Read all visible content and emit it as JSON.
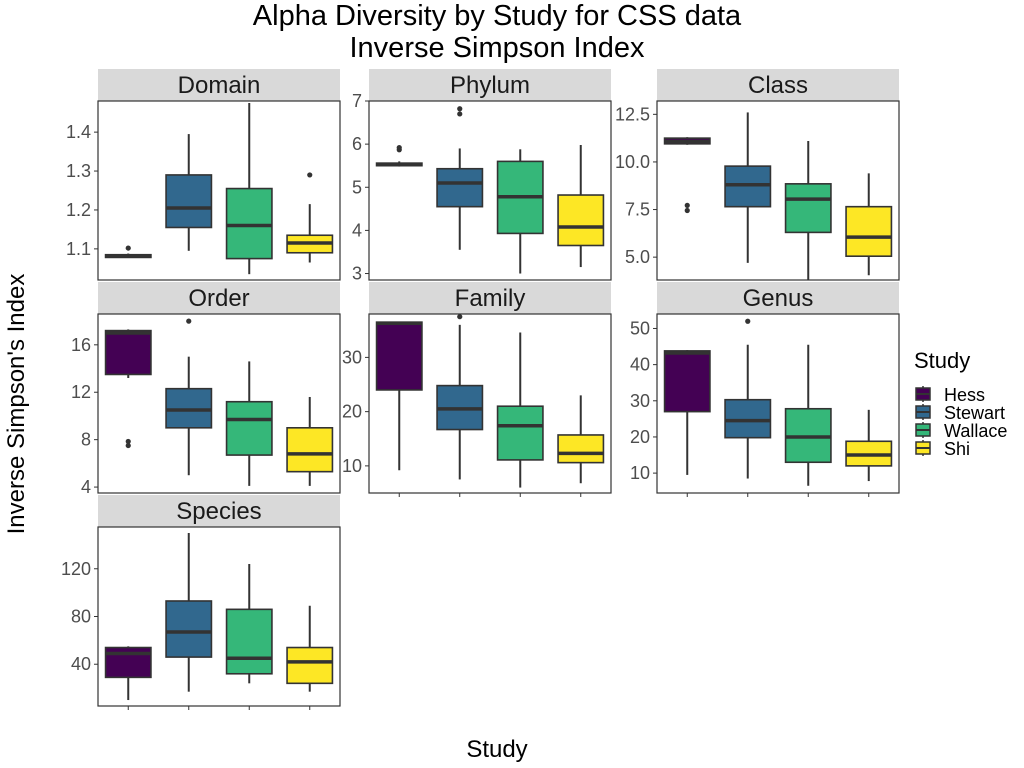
{
  "title_line1": "Alpha Diversity by Study for CSS data",
  "title_line2": "Inverse Simpson Index",
  "ylabel": "Inverse Simpson's Index",
  "xlabel": "Study",
  "legend": {
    "title": "Study",
    "items": [
      {
        "name": "Hess",
        "color": "#440154"
      },
      {
        "name": "Stewart",
        "color": "#31688E"
      },
      {
        "name": "Wallace",
        "color": "#35B779"
      },
      {
        "name": "Shi",
        "color": "#FDE725"
      }
    ]
  },
  "chart_data": {
    "type": "boxplot",
    "categories": [
      "Hess",
      "Stewart",
      "Wallace",
      "Shi"
    ],
    "grid": false,
    "legend_position": "right",
    "panels": [
      {
        "name": "Domain",
        "ylim": [
          1.02,
          1.48
        ],
        "ticks": [
          1.1,
          1.2,
          1.3,
          1.4
        ],
        "tick_labels": [
          "1.1",
          "1.2",
          "1.3",
          "1.4"
        ],
        "boxes": [
          {
            "study": "Hess",
            "min": 1.078,
            "q1": 1.078,
            "median": 1.082,
            "q3": 1.085,
            "max": 1.088,
            "outliers": [
              1.102
            ]
          },
          {
            "study": "Stewart",
            "min": 1.095,
            "q1": 1.155,
            "median": 1.205,
            "q3": 1.29,
            "max": 1.395,
            "outliers": []
          },
          {
            "study": "Wallace",
            "min": 1.035,
            "q1": 1.075,
            "median": 1.16,
            "q3": 1.255,
            "max": 1.475,
            "outliers": []
          },
          {
            "study": "Shi",
            "min": 1.065,
            "q1": 1.09,
            "median": 1.115,
            "q3": 1.135,
            "max": 1.215,
            "outliers": [
              1.29
            ]
          }
        ]
      },
      {
        "name": "Phylum",
        "ylim": [
          2.85,
          7.0
        ],
        "ticks": [
          3,
          4,
          5,
          6,
          7
        ],
        "tick_labels": [
          "3",
          "4",
          "5",
          "6",
          "7"
        ],
        "boxes": [
          {
            "study": "Hess",
            "min": 5.48,
            "q1": 5.5,
            "median": 5.53,
            "q3": 5.56,
            "max": 5.6,
            "outliers": [
              5.87,
              5.92
            ]
          },
          {
            "study": "Stewart",
            "min": 3.55,
            "q1": 4.55,
            "median": 5.1,
            "q3": 5.43,
            "max": 5.9,
            "outliers": [
              6.7,
              6.82
            ]
          },
          {
            "study": "Wallace",
            "min": 3.0,
            "q1": 3.93,
            "median": 4.78,
            "q3": 5.6,
            "max": 5.88,
            "outliers": []
          },
          {
            "study": "Shi",
            "min": 3.15,
            "q1": 3.65,
            "median": 4.08,
            "q3": 4.82,
            "max": 5.98,
            "outliers": []
          }
        ]
      },
      {
        "name": "Class",
        "ylim": [
          3.8,
          13.2
        ],
        "ticks": [
          5.0,
          7.5,
          10.0,
          12.5
        ],
        "tick_labels": [
          "5.0",
          "7.5",
          "10.0",
          "12.5"
        ],
        "boxes": [
          {
            "study": "Hess",
            "min": 10.9,
            "q1": 10.95,
            "median": 11.08,
            "q3": 11.25,
            "max": 11.3,
            "outliers": [
              7.45,
              7.72
            ]
          },
          {
            "study": "Stewart",
            "min": 4.7,
            "q1": 7.65,
            "median": 8.8,
            "q3": 9.78,
            "max": 12.6,
            "outliers": []
          },
          {
            "study": "Wallace",
            "min": 3.8,
            "q1": 6.3,
            "median": 8.05,
            "q3": 8.85,
            "max": 11.1,
            "outliers": []
          },
          {
            "study": "Shi",
            "min": 4.05,
            "q1": 5.05,
            "median": 6.05,
            "q3": 7.65,
            "max": 9.4,
            "outliers": []
          }
        ]
      },
      {
        "name": "Order",
        "ylim": [
          3.5,
          18.6
        ],
        "ticks": [
          4,
          8,
          12,
          16
        ],
        "tick_labels": [
          "4",
          "8",
          "12",
          "16"
        ],
        "boxes": [
          {
            "study": "Hess",
            "min": 13.2,
            "q1": 13.5,
            "median": 17.0,
            "q3": 17.2,
            "max": 17.3,
            "outliers": [
              7.5,
              7.85
            ]
          },
          {
            "study": "Stewart",
            "min": 5.0,
            "q1": 9.0,
            "median": 10.5,
            "q3": 12.3,
            "max": 15.0,
            "outliers": [
              18.0
            ]
          },
          {
            "study": "Wallace",
            "min": 4.1,
            "q1": 6.7,
            "median": 9.7,
            "q3": 11.2,
            "max": 14.6,
            "outliers": []
          },
          {
            "study": "Shi",
            "min": 4.1,
            "q1": 5.3,
            "median": 6.8,
            "q3": 9.0,
            "max": 11.6,
            "outliers": []
          }
        ]
      },
      {
        "name": "Family",
        "ylim": [
          5.0,
          38.0
        ],
        "ticks": [
          10,
          20,
          30
        ],
        "tick_labels": [
          "10",
          "20",
          "30"
        ],
        "boxes": [
          {
            "study": "Hess",
            "min": 9.2,
            "q1": 24.0,
            "median": 36.3,
            "q3": 36.5,
            "max": 36.6,
            "outliers": []
          },
          {
            "study": "Stewart",
            "min": 7.5,
            "q1": 16.7,
            "median": 20.5,
            "q3": 24.8,
            "max": 36.0,
            "outliers": [
              37.5
            ]
          },
          {
            "study": "Wallace",
            "min": 6.0,
            "q1": 11.1,
            "median": 17.4,
            "q3": 21.0,
            "max": 34.6,
            "outliers": []
          },
          {
            "study": "Shi",
            "min": 6.8,
            "q1": 10.6,
            "median": 12.3,
            "q3": 15.7,
            "max": 23.0,
            "outliers": []
          }
        ]
      },
      {
        "name": "Genus",
        "ylim": [
          4.5,
          54.0
        ],
        "ticks": [
          10,
          20,
          30,
          40,
          50
        ],
        "tick_labels": [
          "10",
          "20",
          "30",
          "40",
          "50"
        ],
        "boxes": [
          {
            "study": "Hess",
            "min": 9.5,
            "q1": 27.0,
            "median": 43.2,
            "q3": 43.8,
            "max": 44.0,
            "outliers": []
          },
          {
            "study": "Stewart",
            "min": 8.5,
            "q1": 19.8,
            "median": 24.5,
            "q3": 30.3,
            "max": 45.5,
            "outliers": [
              52.0
            ]
          },
          {
            "study": "Wallace",
            "min": 6.5,
            "q1": 13.0,
            "median": 20.0,
            "q3": 27.8,
            "max": 45.5,
            "outliers": []
          },
          {
            "study": "Shi",
            "min": 7.8,
            "q1": 12.0,
            "median": 15.0,
            "q3": 18.8,
            "max": 27.5,
            "outliers": []
          }
        ]
      },
      {
        "name": "Species",
        "ylim": [
          5.0,
          155.0
        ],
        "ticks": [
          40,
          80,
          120
        ],
        "tick_labels": [
          "40",
          "80",
          "120"
        ],
        "boxes": [
          {
            "study": "Hess",
            "min": 10.0,
            "q1": 29.0,
            "median": 49.0,
            "q3": 54.0,
            "max": 55.0,
            "outliers": []
          },
          {
            "study": "Stewart",
            "min": 17.0,
            "q1": 46.0,
            "median": 67.0,
            "q3": 93.0,
            "max": 150.0,
            "outliers": []
          },
          {
            "study": "Wallace",
            "min": 24.0,
            "q1": 32.0,
            "median": 45.0,
            "q3": 86.0,
            "max": 124.0,
            "outliers": []
          },
          {
            "study": "Shi",
            "min": 17.0,
            "q1": 24.0,
            "median": 42.0,
            "q3": 54.0,
            "max": 89.0,
            "outliers": []
          }
        ]
      }
    ]
  }
}
